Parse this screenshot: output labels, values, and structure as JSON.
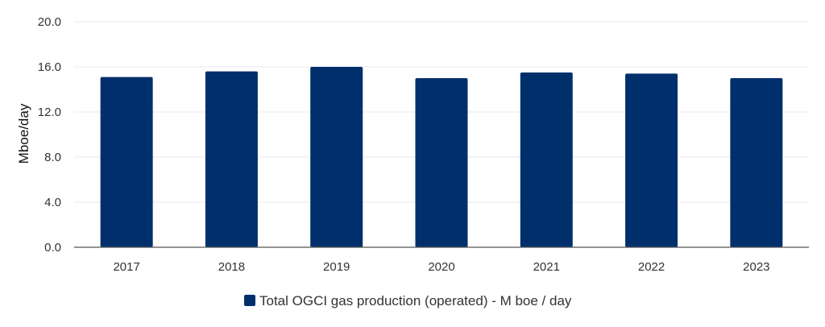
{
  "chart_data": {
    "type": "bar",
    "title": "",
    "xlabel": "",
    "ylabel": "Mboe/day",
    "categories": [
      "2017",
      "2018",
      "2019",
      "2020",
      "2021",
      "2022",
      "2023"
    ],
    "series": [
      {
        "name": "Total OGCI gas production (operated) - M boe / day",
        "values": [
          15.1,
          15.6,
          16.0,
          15.0,
          15.5,
          15.4,
          15.0
        ],
        "color": "#002f6c"
      }
    ],
    "ylim": [
      0,
      20
    ],
    "yticks": [
      "0.0",
      "4.0",
      "8.0",
      "12.0",
      "16.0",
      "20.0"
    ],
    "ytick_values": [
      0,
      4,
      8,
      12,
      16,
      20
    ],
    "grid": true,
    "legend_position": "bottom-center"
  }
}
